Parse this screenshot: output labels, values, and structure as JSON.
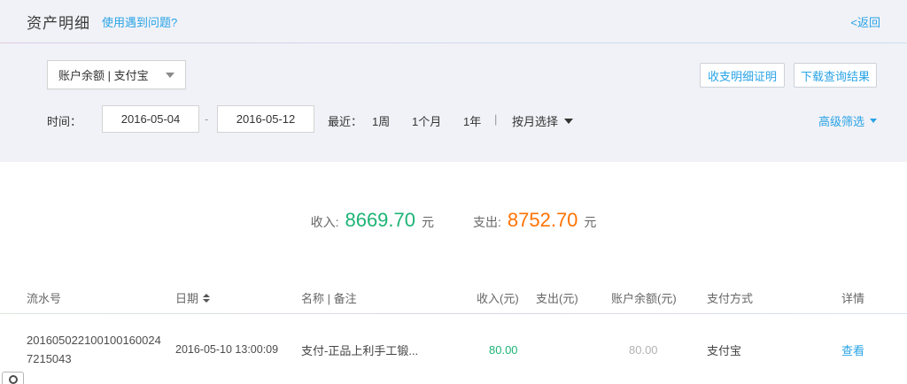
{
  "header": {
    "title": "资产明细",
    "help_link": "使用遇到问题?",
    "back_link": "<返回"
  },
  "filters": {
    "account_select": {
      "value": "账户余额 | 支付宝"
    },
    "proof_button": "收支明细证明",
    "download_button": "下载查询结果",
    "time": {
      "label": "时间：",
      "start": "2016-05-04",
      "separator": "-",
      "end": "2016-05-12",
      "recent_label": "最近：",
      "quick_ranges": [
        "1周",
        "1个月",
        "1年"
      ],
      "divider": "|",
      "month_select_label": "按月选择",
      "advanced_label": "高级筛选"
    }
  },
  "summary": {
    "income_label": "收入:",
    "income_value": "8669.70",
    "expense_label": "支出:",
    "expense_value": "8752.70",
    "unit": "元"
  },
  "table": {
    "headers": [
      "流水号",
      "日期",
      "名称 | 备注",
      "收入(元)",
      "支出(元)",
      "账户余额(元)",
      "支付方式",
      "详情"
    ],
    "rows": [
      {
        "serial": "2016050221001001600247215043",
        "date": "2016-05-10 13:00:09",
        "name": "支付-正品上利手工锻...",
        "income": "80.00",
        "expense": "",
        "balance": "80.00",
        "method": "支付宝",
        "detail_link": "查看"
      }
    ]
  },
  "icons": {
    "account_caret": "chevron-down-icon",
    "month_caret": "chevron-down-icon",
    "advanced_caret": "chevron-down-icon",
    "date_sort": "sort-updown-icon",
    "corner": "circle-icon"
  },
  "colors": {
    "accent_blue": "#29a3e6",
    "income_green": "#1db476",
    "expense_orange": "#ff7302",
    "panel_bg": "#f1f2f7"
  }
}
